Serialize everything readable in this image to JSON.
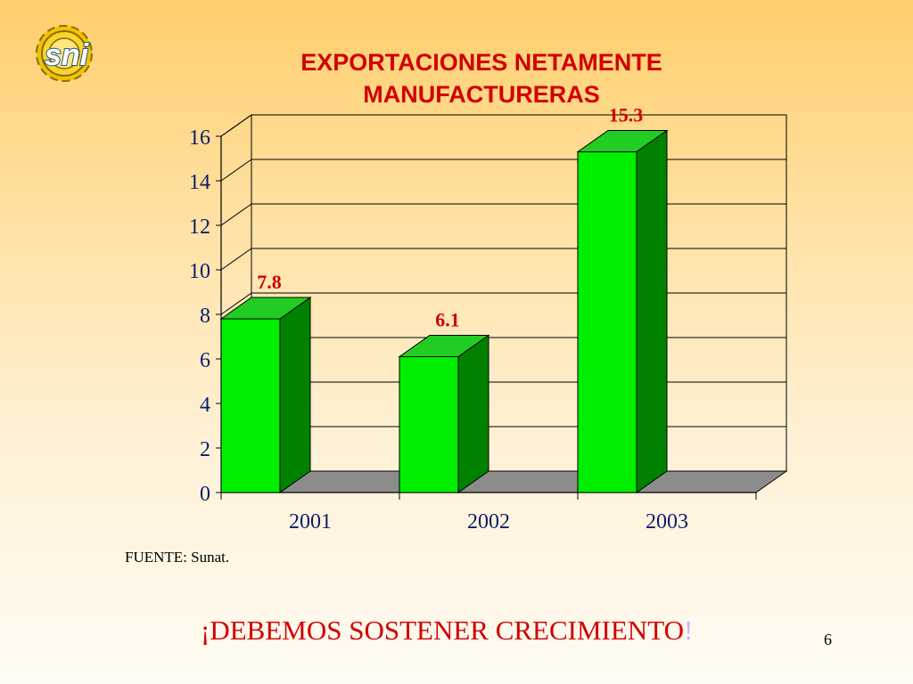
{
  "slide": {
    "title_line1": "EXPORTACIONES NETAMENTE",
    "title_line2": "MANUFACTURERAS",
    "source": "FUENTE: Sunat.",
    "slogan_main": "¡DEBEMOS SOSTENER CRECIMIENTO",
    "slogan_end": "!",
    "page_number": "6"
  },
  "logo": {
    "text": "sni"
  },
  "colors": {
    "title": "#d10000",
    "bar_front": "#00ee00",
    "bar_side": "#008200",
    "bar_top": "#22cc22",
    "floor": "#8c8c8c",
    "axis_text": "#0b1d6b",
    "value_label": "#d10000"
  },
  "chart_data": {
    "type": "bar",
    "categories": [
      "2001",
      "2002",
      "2003"
    ],
    "values": [
      7.8,
      6.1,
      15.3
    ],
    "data_labels": [
      "7.8",
      "6.1",
      "15.3"
    ],
    "yticks": [
      0,
      2,
      4,
      6,
      8,
      10,
      12,
      14,
      16
    ],
    "ylim": [
      0,
      16
    ],
    "grid": true,
    "style": "3d"
  }
}
